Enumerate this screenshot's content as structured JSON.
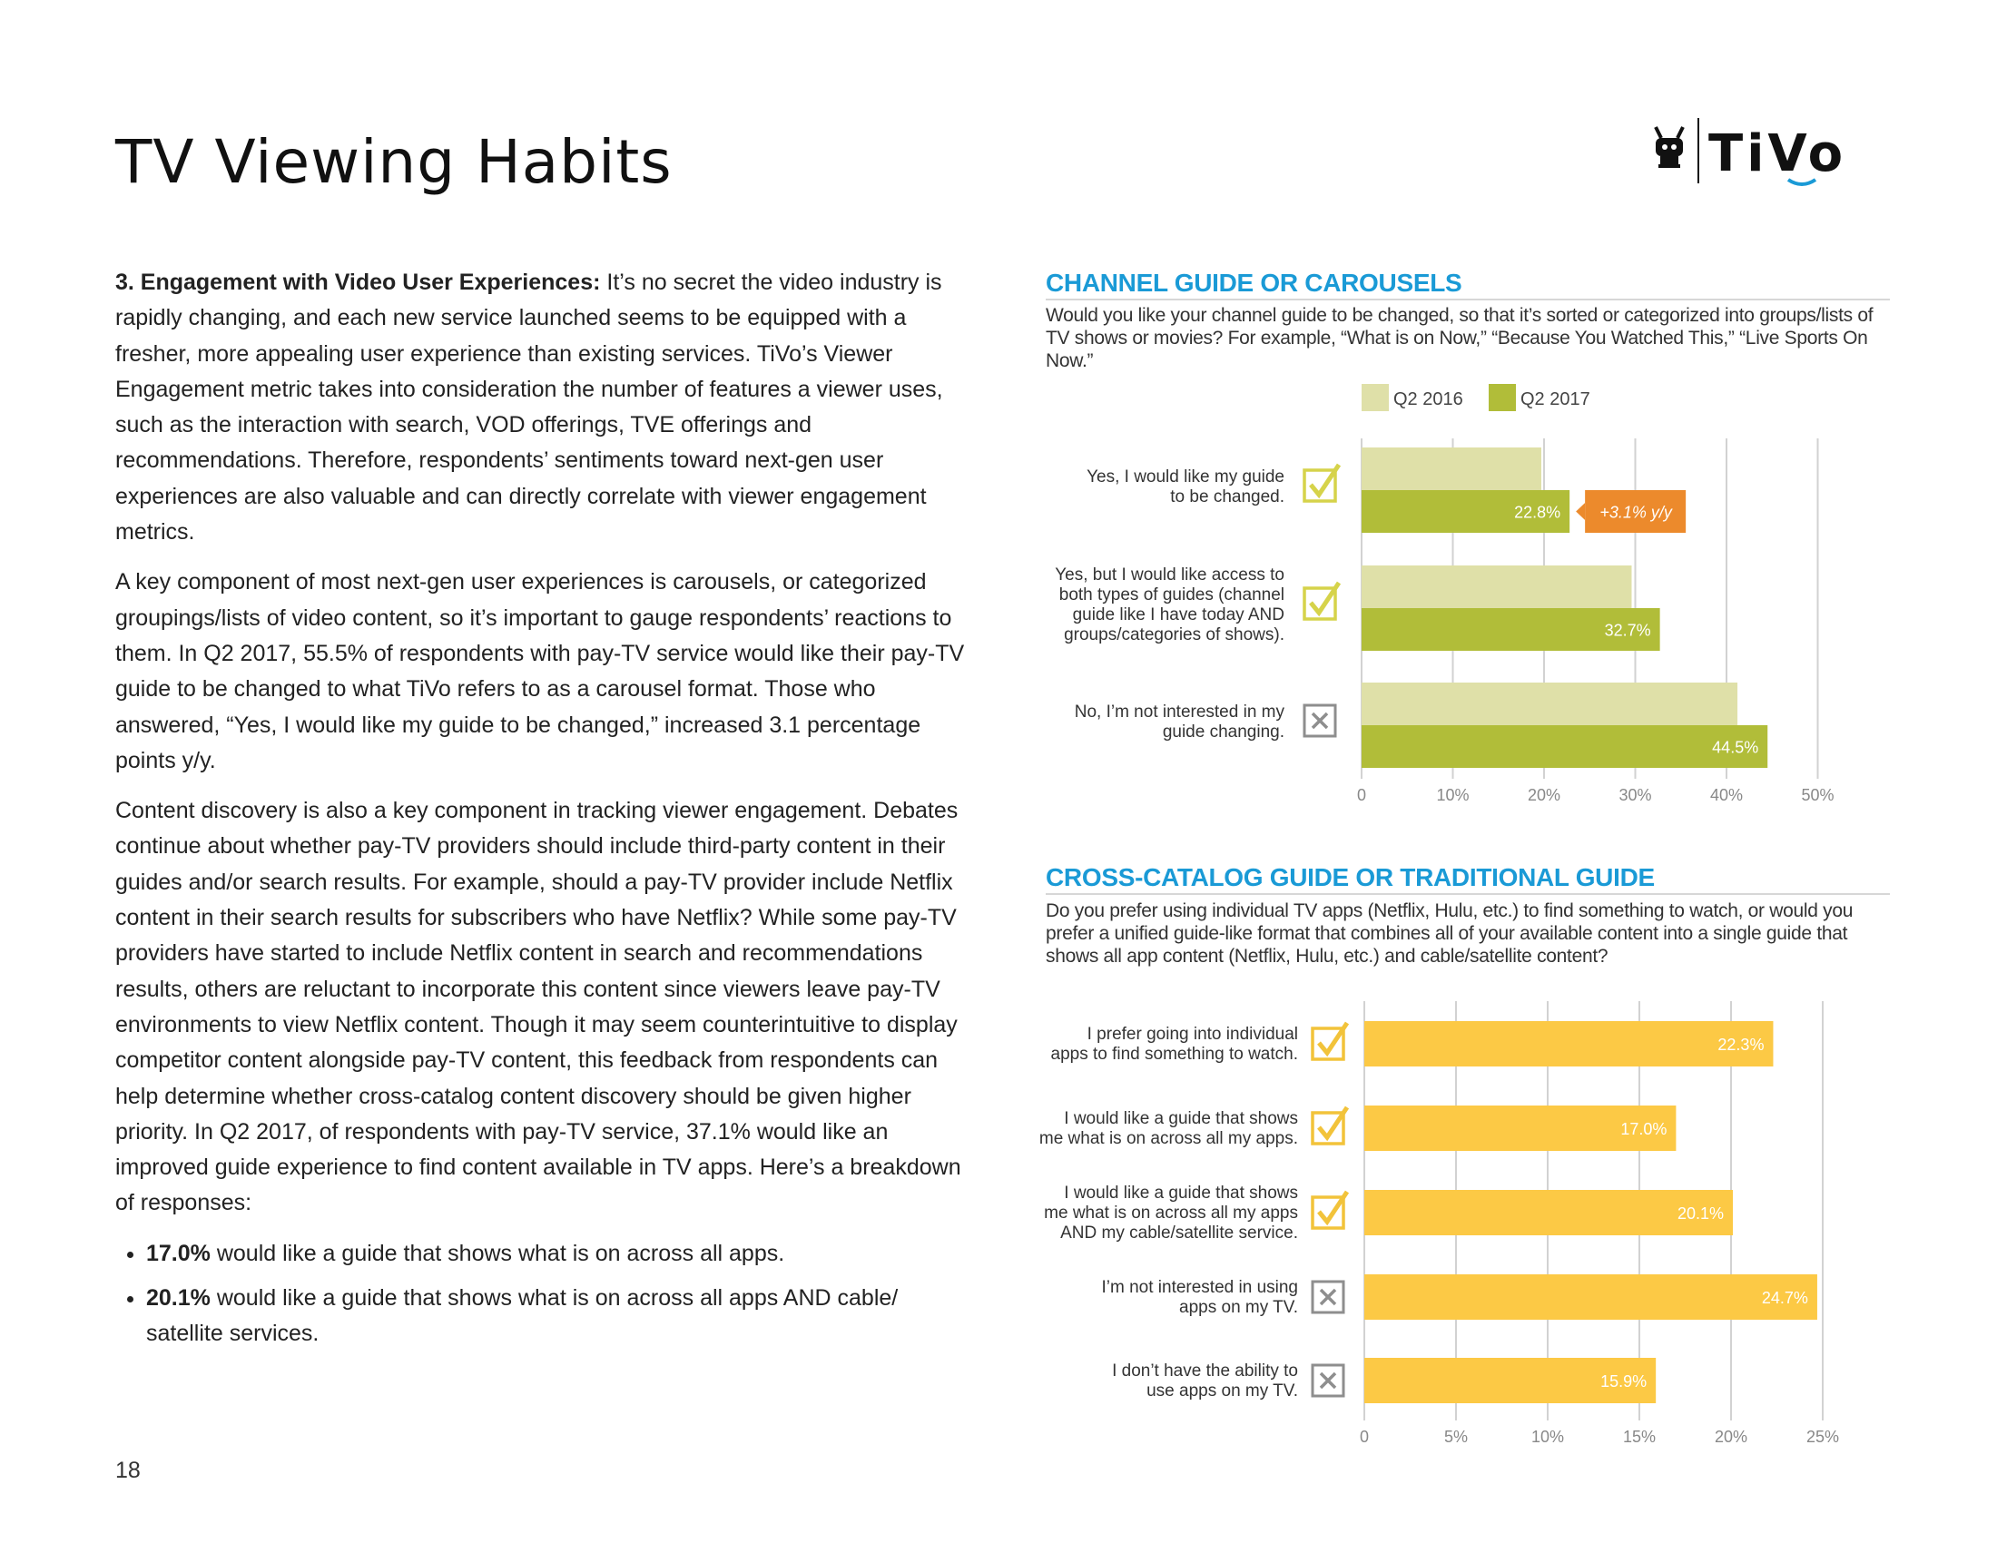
{
  "page": {
    "title": "TV Viewing Habits",
    "page_number": "18",
    "logo_text": "TiVo"
  },
  "body": {
    "p1_lead": "3.  Engagement with Video User Experiences:",
    "p1_text": " It’s no secret the video industry is rapidly changing, and each new service launched seems to be equipped with a fresher, more appealing user experience than existing services. TiVo’s Viewer Engagement metric takes into consideration the number of features a viewer uses, such as the interaction with search, VOD offerings, TVE offerings and recommendations. Therefore, respondents’ sentiments toward next-gen user experiences are also valuable and can directly correlate with viewer engagement metrics.",
    "p2": "A key component of most next-gen user experiences is carousels, or categorized groupings/lists of video content, so it’s important to gauge respondents’ reactions to them. In Q2 2017, 55.5% of respondents with pay-TV service would like their pay-TV guide to be changed to what TiVo refers to as a carousel format. Those who answered, “Yes, I would like my guide to be changed,” increased 3.1 percentage points y/y.",
    "p3": "Content discovery is also a key component in tracking viewer engagement. Debates continue about whether pay-TV providers should include third-party content in their guides and/or search results. For example, should a pay-TV provider include Netflix content in their search results for subscribers who have Netflix? While some pay-TV providers have started to include Netflix content in search and recommendations results, others are reluctant to incorporate this content since viewers leave pay-TV environments to view Netflix content. Though it may seem counterintuitive to display competitor content alongside pay-TV content, this feedback from respondents can help determine whether cross-catalog content discovery should be given higher priority. In Q2 2017, of respondents with pay-TV service, 37.1% would like an improved guide experience to find content available in TV apps. Here’s a breakdown of responses:",
    "bullets": [
      {
        "bold": "17.0%",
        "text": " would like a guide that shows what is on across all apps."
      },
      {
        "bold": "20.1%",
        "text": " would like a guide that shows what is on across all apps AND cable/ satellite services."
      }
    ]
  },
  "chart1_meta": {
    "heading": "CHANNEL GUIDE OR CAROUSELS",
    "question": "Would you like your channel guide to be changed, so that it’s sorted or categorized into groups/lists of TV shows or movies?  For example, “What is on Now,” “Because You Watched This,” “Live Sports On Now.”"
  },
  "chart2_meta": {
    "heading": "CROSS-CATALOG GUIDE OR TRADITIONAL GUIDE",
    "question": "Do you prefer using individual TV apps (Netflix, Hulu, etc.) to find something to watch, or would you prefer a unified guide-like format that combines all of your available content into a single guide that shows all app content (Netflix, Hulu, etc.) and cable/satellite content?"
  },
  "chart_data": [
    {
      "type": "bar",
      "orientation": "horizontal",
      "title": "CHANNEL GUIDE OR CAROUSELS",
      "categories": [
        [
          "Yes, I would like my guide",
          "to be changed."
        ],
        [
          "Yes, but I would like access to",
          "both types of guides (channel",
          "guide like I have today AND",
          "groups/categories of shows)."
        ],
        [
          "No, I’m not interested in my",
          "guide changing."
        ]
      ],
      "icons": [
        "check-icon",
        "check-icon",
        "x-icon"
      ],
      "series": [
        {
          "name": "Q2 2016",
          "values": [
            19.7,
            29.6,
            41.2
          ],
          "labels": [
            "",
            "",
            ""
          ],
          "color": "#dfe0a8"
        },
        {
          "name": "Q2 2017",
          "values": [
            22.8,
            32.7,
            44.5
          ],
          "labels": [
            "22.8%",
            "32.7%",
            "44.5%"
          ],
          "color": "#b1bd39"
        }
      ],
      "annotation": {
        "text": "+3.1% y/y",
        "color": "#ec8a2c"
      },
      "xlim": [
        0,
        50
      ],
      "ticks": [
        "0",
        "10%",
        "20%",
        "30%",
        "40%",
        "50%"
      ],
      "legend": "top-left",
      "grid": true
    },
    {
      "type": "bar",
      "orientation": "horizontal",
      "title": "CROSS-CATALOG GUIDE OR TRADITIONAL GUIDE",
      "categories": [
        [
          "I prefer going into individual",
          "apps to find something to watch."
        ],
        [
          "I would like a guide that shows",
          "me what is on across all my apps."
        ],
        [
          "I would like a guide that shows",
          "me what is on across all my apps",
          "AND my cable/satellite service."
        ],
        [
          "I’m not interested in using",
          "apps on my TV."
        ],
        [
          "I don’t have the ability to",
          "use apps on my TV."
        ]
      ],
      "icons": [
        "check-icon",
        "check-icon",
        "check-icon",
        "x-icon",
        "x-icon"
      ],
      "series": [
        {
          "name": "Q2 2017",
          "values": [
            22.3,
            17.0,
            20.1,
            24.7,
            15.9
          ],
          "labels": [
            "22.3%",
            "17.0%",
            "20.1%",
            "24.7%",
            "15.9%"
          ],
          "color": "#fcc945"
        }
      ],
      "xlim": [
        0,
        25
      ],
      "ticks": [
        "0",
        "5%",
        "10%",
        "15%",
        "20%",
        "25%"
      ],
      "grid": true
    }
  ],
  "colors": {
    "accent": "#1a9ad6",
    "check_yellow_green": "#d6d34a",
    "check_yellow": "#f2c33a",
    "x_gray": "#8e8e8e",
    "grid": "#d2d2d2"
  }
}
